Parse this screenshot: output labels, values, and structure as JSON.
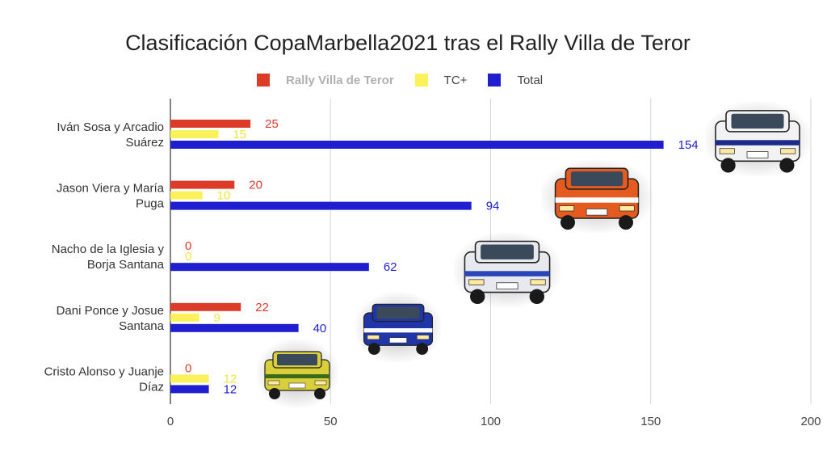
{
  "chart_data": {
    "type": "bar",
    "orientation": "horizontal",
    "title": "Clasificación CopaMarbella2021 tras el Rally Villa de Teror",
    "categories": [
      [
        "Iván Sosa y Arcadio",
        "Suárez"
      ],
      [
        "Jason Viera y María",
        "Puga"
      ],
      [
        "Nacho de la Iglesia y",
        "Borja Santana"
      ],
      [
        "Dani Ponce y Josue",
        "Santana"
      ],
      [
        "Cristo Alonso y Juanje",
        "Díaz"
      ]
    ],
    "series": [
      {
        "name": "Rally Villa de Teror",
        "color": "#dc3b2a",
        "values": [
          25,
          20,
          0,
          22,
          0
        ]
      },
      {
        "name": "TC+",
        "color": "#fbf15b",
        "values": [
          15,
          10,
          0,
          9,
          12
        ]
      },
      {
        "name": "Total",
        "color": "#1f1fd0",
        "values": [
          154,
          94,
          62,
          40,
          12
        ]
      }
    ],
    "xlim": [
      0,
      200
    ],
    "xticks": [
      0,
      50,
      100,
      150,
      200
    ],
    "grid": true,
    "legend_position": "top"
  },
  "decorations": {
    "car_photos": [
      {
        "name": "car-photo-white",
        "body": "#f2f2f2",
        "stripe": "#1d2a8a"
      },
      {
        "name": "car-photo-orange",
        "body": "#e55a1f",
        "stripe": "#ffffff"
      },
      {
        "name": "car-photo-white-blue",
        "body": "#e8e8ef",
        "stripe": "#2a45b8"
      },
      {
        "name": "car-photo-blue",
        "body": "#2036a8",
        "stripe": "#ffffff"
      },
      {
        "name": "car-photo-yellow",
        "body": "#d9cf3a",
        "stripe": "#3a6a1a"
      }
    ]
  }
}
